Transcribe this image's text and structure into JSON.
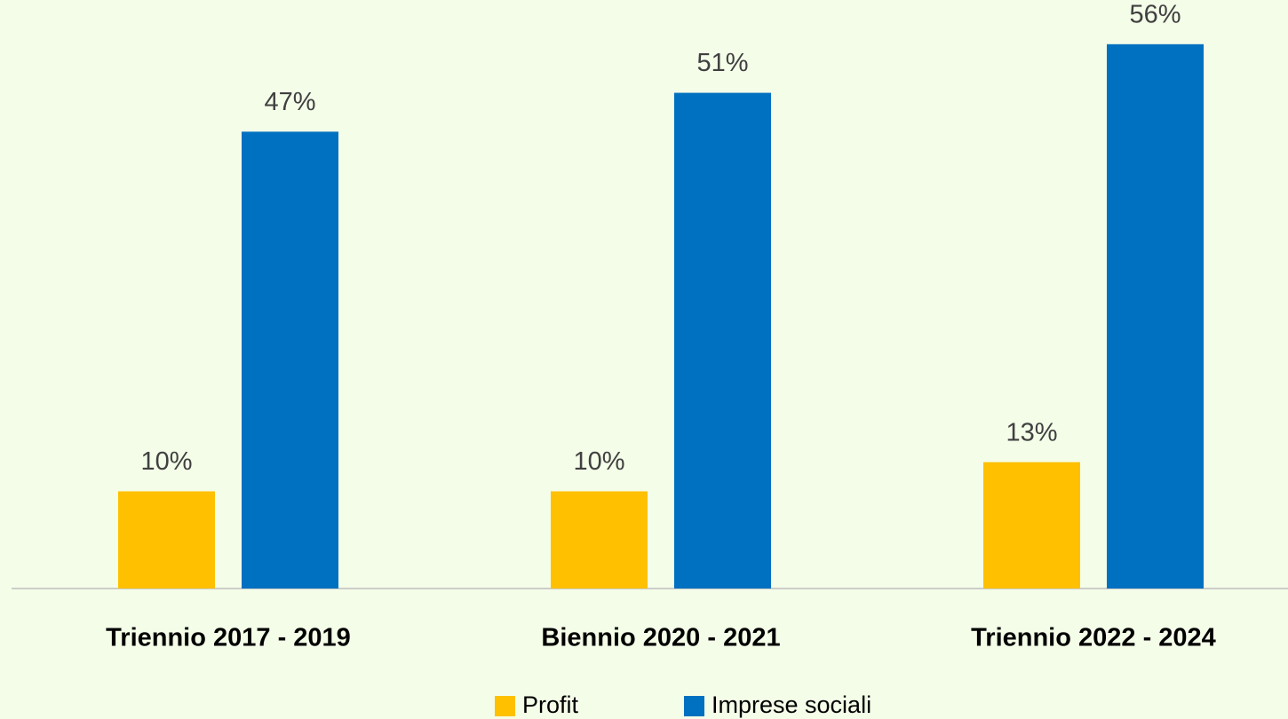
{
  "chart_data": {
    "type": "bar",
    "categories": [
      "Triennio 2017 - 2019",
      "Biennio 2020 - 2021",
      "Triennio 2022 - 2024"
    ],
    "series": [
      {
        "name": "Profit",
        "color": "#ffc000",
        "values": [
          10,
          10,
          13
        ],
        "value_labels": [
          "10%",
          "10%",
          "13%"
        ]
      },
      {
        "name": "Imprese sociali",
        "color": "#0070c0",
        "values": [
          47,
          51,
          56
        ],
        "value_labels": [
          "47%",
          "51%",
          "56%"
        ]
      }
    ],
    "legend": "bottom"
  }
}
